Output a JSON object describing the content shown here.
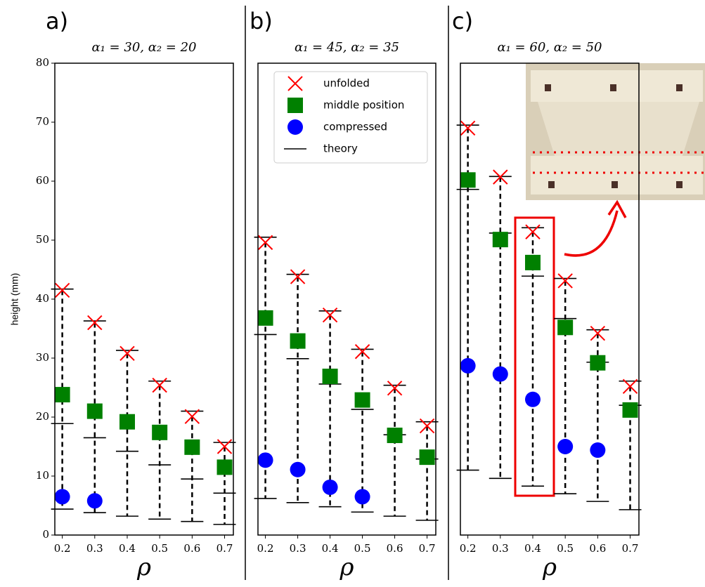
{
  "chart_data": [
    {
      "type": "scatter",
      "panel_label": "a)",
      "title": "α₁ = 30, α₂ = 20",
      "xlabel": "ρ",
      "ylabel": "height (mm)",
      "x": [
        0.2,
        0.3,
        0.4,
        0.5,
        0.6,
        0.7
      ],
      "xlim": [
        0.177,
        0.727
      ],
      "xticks": [
        0.2,
        0.3,
        0.4,
        0.5,
        0.6,
        0.7
      ],
      "ylim": [
        0,
        80
      ],
      "yticks": [
        0,
        10,
        20,
        30,
        40,
        50,
        60,
        70,
        80
      ],
      "series": [
        {
          "marker": "x",
          "color": "#ff0000",
          "values": [
            41.5,
            36,
            30.8,
            25.4,
            20.1,
            15
          ],
          "theory": [
            41.7,
            36.3,
            31.3,
            26.1,
            21,
            15.7
          ]
        },
        {
          "marker": "square",
          "color": "#008000",
          "values": [
            23.8,
            21,
            19.2,
            17.4,
            14.9,
            11.5
          ],
          "theory": [
            18.9,
            16.5,
            14.2,
            11.9,
            9.5,
            7.1
          ]
        },
        {
          "marker": "circle",
          "color": "#0000ff",
          "values": [
            6.5,
            5.8,
            null,
            null,
            null,
            null
          ],
          "theory": [
            4.4,
            3.8,
            3.2,
            2.7,
            2.3,
            1.8
          ]
        }
      ]
    },
    {
      "type": "scatter",
      "panel_label": "b)",
      "title": "α₁ = 45, α₂ = 35",
      "xlabel": "ρ",
      "x": [
        0.2,
        0.3,
        0.4,
        0.5,
        0.6,
        0.7
      ],
      "xlim": [
        0.177,
        0.727
      ],
      "xticks": [
        0.2,
        0.3,
        0.4,
        0.5,
        0.6,
        0.7
      ],
      "ylim": [
        0,
        80
      ],
      "legend": "upper center",
      "theory_name": "theory",
      "series": [
        {
          "name": "unfolded",
          "marker": "x",
          "color": "#ff0000",
          "values": [
            49.6,
            43.8,
            37.3,
            31.1,
            24.9,
            18.5
          ],
          "theory": [
            50.5,
            44.2,
            38,
            31.5,
            25.4,
            19.2
          ]
        },
        {
          "name": "middle position",
          "marker": "square",
          "color": "#008000",
          "values": [
            36.8,
            32.9,
            26.9,
            22.9,
            16.9,
            13.2
          ],
          "theory": [
            34,
            29.9,
            25.6,
            21.3,
            17,
            12.9
          ]
        },
        {
          "name": "compressed",
          "marker": "circle",
          "color": "#0000ff",
          "values": [
            12.7,
            11.1,
            8.1,
            6.5,
            null,
            null
          ],
          "theory": [
            6.2,
            5.5,
            4.8,
            3.9,
            3.2,
            2.5
          ]
        }
      ]
    },
    {
      "type": "scatter",
      "panel_label": "c)",
      "title": "α₁ = 60, α₂ = 50",
      "xlabel": "ρ",
      "x": [
        0.2,
        0.3,
        0.4,
        0.5,
        0.6,
        0.7
      ],
      "xlim": [
        0.177,
        0.727
      ],
      "xticks": [
        0.2,
        0.3,
        0.4,
        0.5,
        0.6,
        0.7
      ],
      "ylim": [
        0,
        80
      ],
      "series": [
        {
          "marker": "x",
          "color": "#ff0000",
          "values": [
            69,
            60.7,
            51.4,
            43.1,
            34.2,
            25.2
          ],
          "theory": [
            69.5,
            60.8,
            52.1,
            43.5,
            34.8,
            26.1
          ]
        },
        {
          "marker": "square",
          "color": "#008000",
          "values": [
            60.2,
            50.1,
            46.2,
            35.2,
            29.2,
            21.2
          ],
          "theory": [
            58.6,
            51.2,
            43.9,
            36.7,
            29.3,
            22
          ]
        },
        {
          "marker": "circle",
          "color": "#0000ff",
          "values": [
            28.7,
            27.3,
            23,
            15,
            14.4,
            null
          ],
          "theory": [
            11,
            9.6,
            8.3,
            7,
            5.7,
            4.3
          ]
        }
      ]
    }
  ]
}
